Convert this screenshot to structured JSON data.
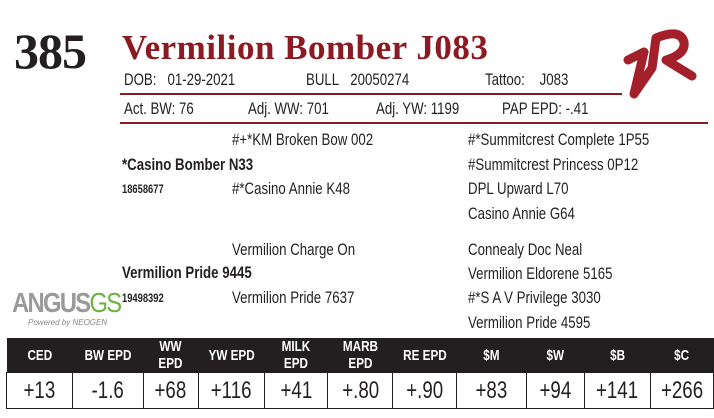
{
  "lot": "385",
  "name": "Vermilion Bomber J083",
  "dob_label": "DOB:",
  "dob": "01-29-2021",
  "sex": "BULL",
  "reg": "20050274",
  "tattoo_label": "Tattoo:",
  "tattoo": "J083",
  "act_bw": "Act. BW: 76",
  "adj_ww": "Adj. WW: 701",
  "adj_yw": "Adj. YW: 1199",
  "pap": "PAP EPD: -.41",
  "pedigree": {
    "sire": "*Casino Bomber N33",
    "sire_reg": "18658677",
    "sire_sire": "#+*KM Broken Bow 002",
    "sire_dam": "#*Casino Annie K48",
    "ss_sire": "#*Summitcrest Complete 1P55",
    "ss_dam": "#Summitcrest Princess 0P12",
    "sd_sire": "DPL Upward L70",
    "sd_dam": "Casino Annie G64",
    "dam": "Vermilion Pride 9445",
    "dam_reg": "19498392",
    "dam_sire": "Vermilion Charge On",
    "dam_dam": "Vermilion Pride 7637",
    "ds_sire": "Connealy Doc Neal",
    "ds_dam": "Vermilion Eldorene 5165",
    "dd_sire": "#*S A V Privilege 3030",
    "dd_dam": "Vermilion Pride 4595"
  },
  "logo": {
    "text1": "ANGUS",
    "text2": "GS",
    "tagline": "Powered by NEOGEN"
  },
  "brand_mark": "VR",
  "epd": {
    "headers": [
      "CED",
      "BW EPD",
      "WW EPD",
      "YW EPD",
      "MILK EPD",
      "MARB EPD",
      "RE EPD",
      "$M",
      "$W",
      "$B",
      "$C"
    ],
    "values": [
      "+13",
      "-1.6",
      "+68",
      "+116",
      "+41",
      "+.80",
      "+.90",
      "+83",
      "+94",
      "+141",
      "+266"
    ]
  },
  "colors": {
    "accent": "#8b1a22",
    "dark": "#231f20",
    "green": "#6cb33f"
  }
}
